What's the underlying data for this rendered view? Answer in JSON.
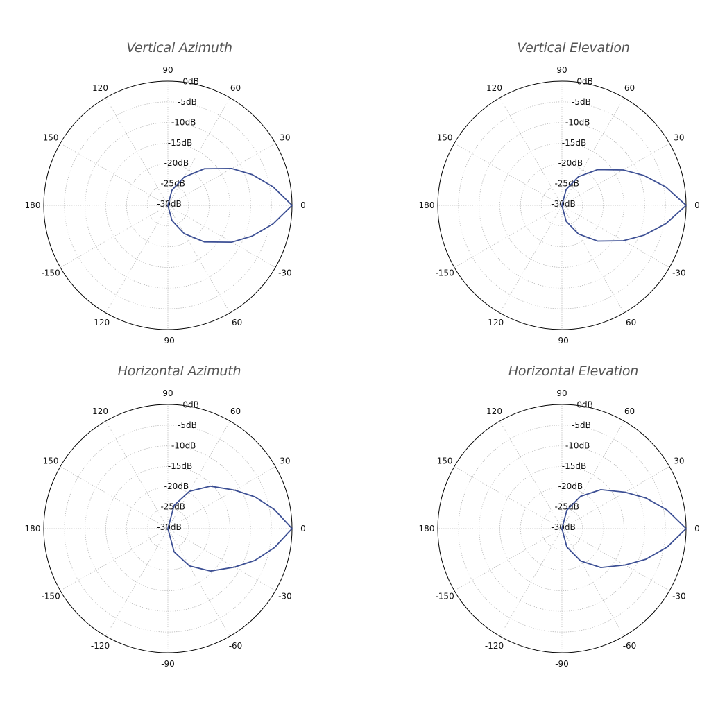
{
  "chart_data": [
    {
      "type": "polar",
      "title": "Vertical Azimuth",
      "angle_ticks": [
        0,
        30,
        60,
        90,
        120,
        150,
        180,
        -150,
        -120,
        -90,
        -60,
        -30
      ],
      "radial_ticks": [
        "0dB",
        "-5dB",
        "-10dB",
        "-15dB",
        "-20dB",
        "-25dB",
        "-30dB"
      ],
      "rlim_db": [
        -30,
        0
      ],
      "grid": true,
      "series": [
        {
          "color": "#3c4f94",
          "angles_deg": [
            -90,
            -75,
            -60,
            -45,
            -30,
            -20,
            -10,
            0,
            10,
            20,
            30,
            45,
            60,
            75,
            90
          ],
          "values_db": [
            -30,
            -26.2,
            -22.1,
            -17.5,
            -12.2,
            -8.3,
            -4.2,
            0,
            -4.2,
            -8.3,
            -12.2,
            -17.5,
            -22.1,
            -26.2,
            -30
          ]
        }
      ]
    },
    {
      "type": "polar",
      "title": "Vertical Elevation",
      "angle_ticks": [
        0,
        30,
        60,
        90,
        120,
        150,
        180,
        -150,
        -120,
        -90,
        -60,
        -30
      ],
      "radial_ticks": [
        "0dB",
        "-5dB",
        "-10dB",
        "-15dB",
        "-20dB",
        "-25dB",
        "-30dB"
      ],
      "rlim_db": [
        -30,
        0
      ],
      "grid": true,
      "series": [
        {
          "color": "#3c4f94",
          "angles_deg": [
            -90,
            -75,
            -60,
            -45,
            -30,
            -20,
            -10,
            0,
            10,
            20,
            30,
            45,
            60,
            75,
            90
          ],
          "values_db": [
            -30,
            -26.0,
            -22.0,
            -17.8,
            -12.9,
            -8.9,
            -4.5,
            0,
            -4.5,
            -8.9,
            -12.9,
            -17.8,
            -22.0,
            -26.0,
            -30
          ]
        }
      ]
    },
    {
      "type": "polar",
      "title": "Horizontal Azimuth",
      "angle_ticks": [
        0,
        30,
        60,
        90,
        120,
        150,
        180,
        -150,
        -120,
        -90,
        -60,
        -30
      ],
      "radial_ticks": [
        "0dB",
        "-5dB",
        "-10dB",
        "-15dB",
        "-20dB",
        "-25dB",
        "-30dB"
      ],
      "rlim_db": [
        -30,
        0
      ],
      "grid": true,
      "series": [
        {
          "color": "#3c4f94",
          "angles_deg": [
            -90,
            -75,
            -60,
            -45,
            -30,
            -20,
            -10,
            0,
            10,
            20,
            30,
            45,
            60,
            75,
            90
          ],
          "values_db": [
            -30,
            -24.2,
            -19.6,
            -15.5,
            -11.4,
            -7.6,
            -3.8,
            0,
            -3.8,
            -7.6,
            -11.4,
            -15.5,
            -19.6,
            -24.2,
            -30
          ]
        }
      ]
    },
    {
      "type": "polar",
      "title": "Horizontal Elevation",
      "angle_ticks": [
        0,
        30,
        60,
        90,
        120,
        150,
        180,
        -150,
        -120,
        -90,
        -60,
        -30
      ],
      "radial_ticks": [
        "0dB",
        "-5dB",
        "-10dB",
        "-15dB",
        "-20dB",
        "-25dB",
        "-30dB"
      ],
      "rlim_db": [
        -30,
        0
      ],
      "grid": true,
      "series": [
        {
          "color": "#3c4f94",
          "angles_deg": [
            -90,
            -75,
            -60,
            -45,
            -30,
            -20,
            -10,
            0,
            10,
            20,
            30,
            45,
            60,
            75,
            90
          ],
          "values_db": [
            -30,
            -25.4,
            -21.0,
            -16.7,
            -12.4,
            -8.4,
            -4.2,
            0,
            -4.2,
            -8.4,
            -12.4,
            -16.7,
            -21.0,
            -25.4,
            -30
          ]
        }
      ]
    }
  ]
}
